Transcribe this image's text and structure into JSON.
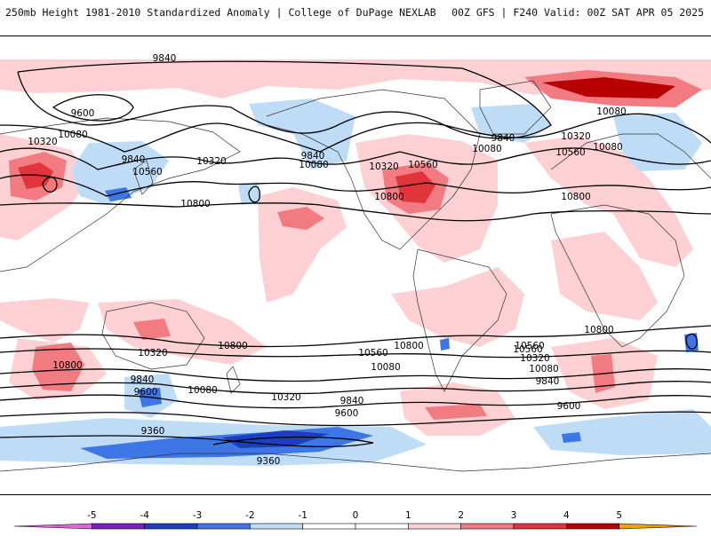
{
  "header": {
    "title": "250mb Height 1981-2010 Standardized Anomaly | College of DuPage NEXLAB",
    "run_info": "00Z GFS | F240 Valid: 00Z SAT APR 05 2025"
  },
  "colors": {
    "neg5": "#e060e0",
    "neg4": "#7a1fbf",
    "neg3": "#1c3fbf",
    "neg2": "#3f76e6",
    "neg1": "#bfdcf7",
    "zero": "#ffffff",
    "pos1": "#fdd0d3",
    "pos2": "#f27b82",
    "pos3": "#e0353a",
    "pos4": "#b80000",
    "pos5": "#f5a000",
    "contour": "#000000",
    "coast": "#222222"
  },
  "colorbar": {
    "ticks": [
      "-5",
      "-4",
      "-3",
      "-2",
      "-1",
      "0",
      "1",
      "2",
      "3",
      "4",
      "5"
    ],
    "range": [
      -6,
      6
    ]
  },
  "contour_labels": [
    {
      "text": "9840"
    },
    {
      "text": "9600"
    },
    {
      "text": "10080"
    },
    {
      "text": "10320"
    },
    {
      "text": "9840"
    },
    {
      "text": "10320"
    },
    {
      "text": "10560"
    },
    {
      "text": "9840"
    },
    {
      "text": "10080"
    },
    {
      "text": "10320"
    },
    {
      "text": "10560"
    },
    {
      "text": "10800"
    },
    {
      "text": "10800"
    },
    {
      "text": "10080"
    },
    {
      "text": "10080"
    },
    {
      "text": "9840"
    },
    {
      "text": "10080"
    },
    {
      "text": "10320"
    },
    {
      "text": "10560"
    },
    {
      "text": "10800"
    },
    {
      "text": "10800"
    },
    {
      "text": "10800"
    },
    {
      "text": "10560"
    },
    {
      "text": "10800"
    },
    {
      "text": "10320"
    },
    {
      "text": "9840"
    },
    {
      "text": "9600"
    },
    {
      "text": "10080"
    },
    {
      "text": "10320"
    },
    {
      "text": "10560"
    },
    {
      "text": "10080"
    },
    {
      "text": "9840"
    },
    {
      "text": "9600"
    },
    {
      "text": "9360"
    },
    {
      "text": "9360"
    },
    {
      "text": "10560"
    },
    {
      "text": "10320"
    },
    {
      "text": "10080"
    },
    {
      "text": "9840"
    },
    {
      "text": "9600"
    },
    {
      "text": "10800"
    }
  ]
}
